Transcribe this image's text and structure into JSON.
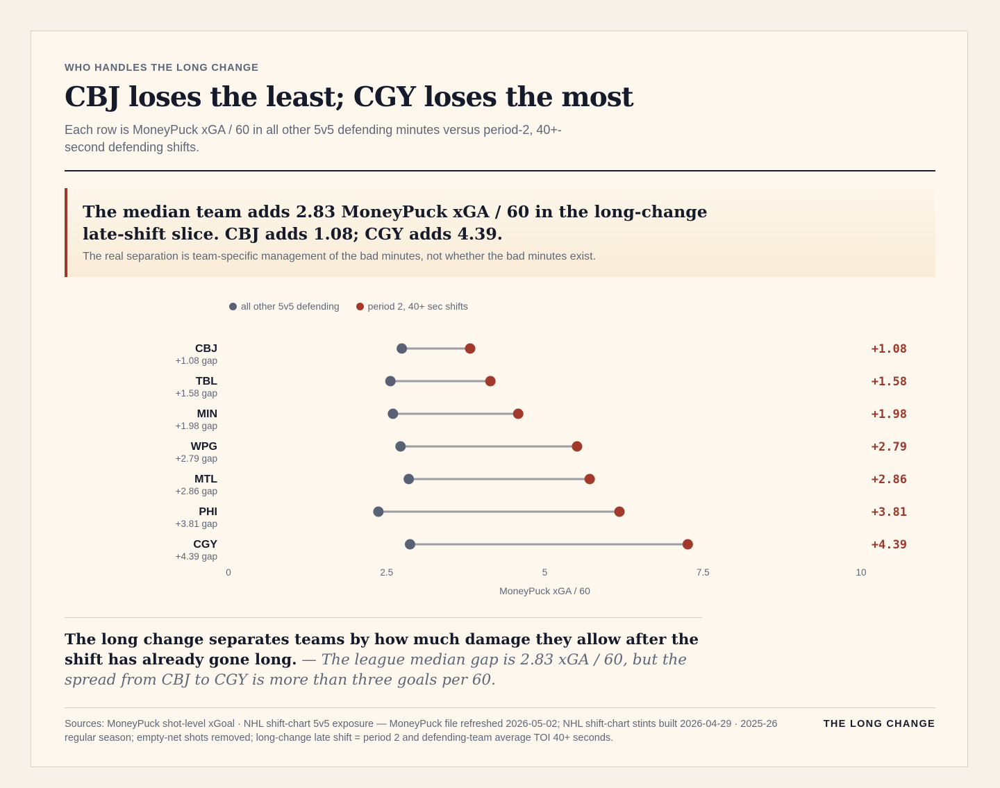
{
  "header": {
    "kicker": "WHO HANDLES THE LONG CHANGE",
    "headline": "CBJ loses the least; CGY loses the most",
    "dek": "Each row is MoneyPuck xGA / 60 in all other 5v5 defending minutes versus period-2, 40+-second defending shifts."
  },
  "callout": {
    "title": "The median team adds 2.83 MoneyPuck xGA / 60 in the long-change late-shift slice. CBJ adds 1.08; CGY adds 4.39.",
    "note": "The real separation is team-specific management of the bad minutes, not whether the bad minutes exist."
  },
  "legend": {
    "baseline": "all other 5v5 defending",
    "late": "period 2, 40+ sec shifts"
  },
  "colors": {
    "baseline": "#596275",
    "late": "#a13a2c",
    "connector": "#9c9ea3",
    "accent": "#9b3a2c"
  },
  "chart_data": {
    "type": "dumbbell",
    "xlabel": "MoneyPuck xGA / 60",
    "xlim": [
      0,
      10
    ],
    "xticks": [
      "0",
      "2.5",
      "5",
      "7.5",
      "10"
    ],
    "series": [
      {
        "name": "all other 5v5 defending"
      },
      {
        "name": "period 2, 40+ sec shifts"
      }
    ],
    "rows": [
      {
        "team": "CBJ",
        "gap_label": "+1.08 gap",
        "delta": "+1.08",
        "baseline": 2.74,
        "late": 3.82
      },
      {
        "team": "TBL",
        "gap_label": "+1.58 gap",
        "delta": "+1.58",
        "baseline": 2.56,
        "late": 4.14
      },
      {
        "team": "MIN",
        "gap_label": "+1.98 gap",
        "delta": "+1.98",
        "baseline": 2.6,
        "late": 4.58
      },
      {
        "team": "WPG",
        "gap_label": "+2.79 gap",
        "delta": "+2.79",
        "baseline": 2.72,
        "late": 5.51
      },
      {
        "team": "MTL",
        "gap_label": "+2.86 gap",
        "delta": "+2.86",
        "baseline": 2.85,
        "late": 5.71
      },
      {
        "team": "PHI",
        "gap_label": "+3.81 gap",
        "delta": "+3.81",
        "baseline": 2.37,
        "late": 6.18
      },
      {
        "team": "CGY",
        "gap_label": "+4.39 gap",
        "delta": "+4.39",
        "baseline": 2.87,
        "late": 7.26
      }
    ]
  },
  "conclusion": {
    "lead": "The long change separates teams by how much damage they allow after the shift has already gone long.",
    "rest": " — The league median gap is 2.83 xGA / 60, but the spread from CBJ to CGY is more than three goals per 60."
  },
  "footer": {
    "sources": "Sources: MoneyPuck shot-level xGoal · NHL shift-chart 5v5 exposure — MoneyPuck file refreshed 2026-05-02; NHL shift-chart stints built 2026-04-29 · 2025-26 regular season; empty-net shots removed; long-change late shift = period 2 and defending-team average TOI 40+ seconds.",
    "brand": "THE LONG CHANGE"
  }
}
